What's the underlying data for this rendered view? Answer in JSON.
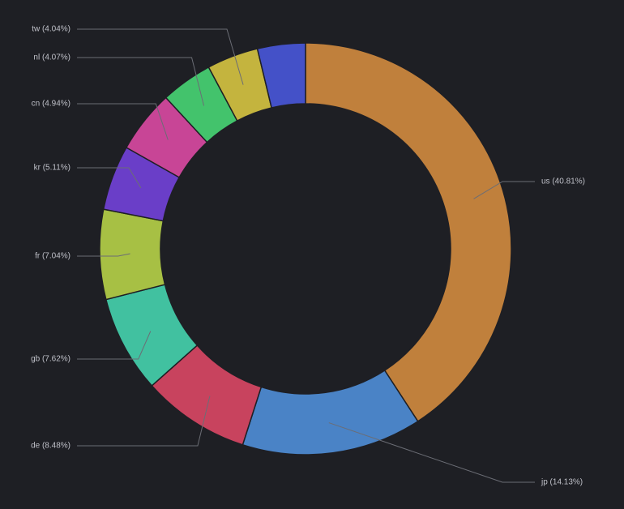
{
  "chart_data": {
    "type": "donut",
    "categories": [
      "us (40.81%)",
      "jp (14.13%)",
      "de (8.48%)",
      "gb (7.62%)",
      "fr (7.04%)",
      "kr (5.11%)",
      "cn (4.94%)",
      "nl (4.07%)",
      "tw (4.04%)",
      null
    ],
    "values": [
      40.81,
      14.13,
      8.48,
      7.62,
      7.04,
      5.11,
      4.94,
      4.07,
      4.04,
      3.76
    ],
    "colors": [
      "#c0803c",
      "#4a83c6",
      "#c8435e",
      "#41c1a0",
      "#a7c044",
      "#6a3ec8",
      "#c84596",
      "#43c36c",
      "#c4b43e",
      "#4451c8"
    ]
  }
}
